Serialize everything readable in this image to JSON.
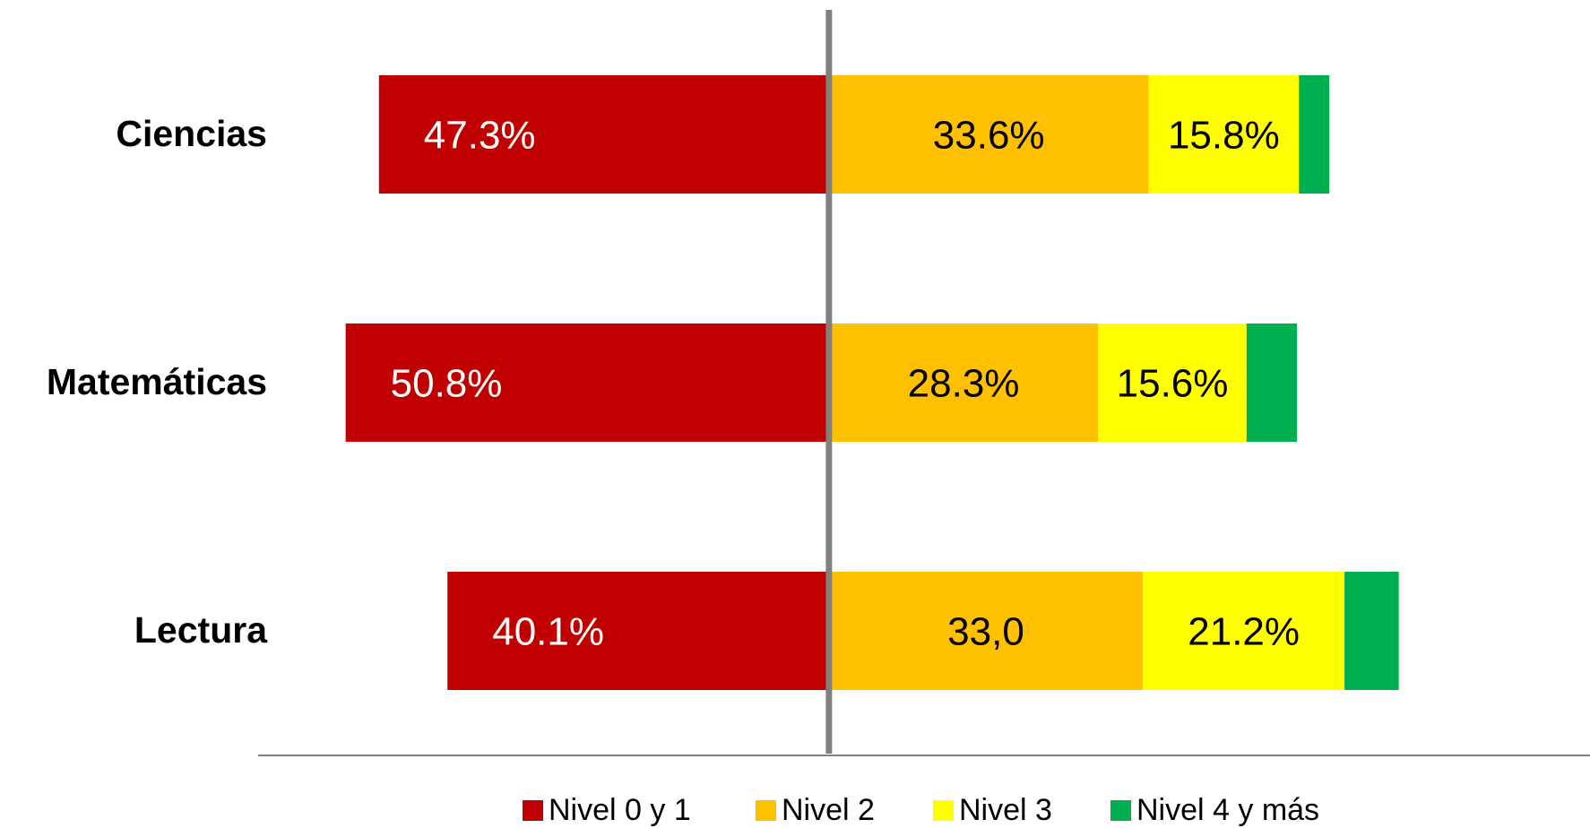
{
  "chart_data": {
    "type": "diverging-bar",
    "categories": [
      "Ciencias",
      "Matemáticas",
      "Lectura"
    ],
    "series": [
      {
        "name": "Nivel 0 y 1",
        "color": "#c00000",
        "values": [
          47.3,
          50.8,
          40.1
        ],
        "value_labels": [
          "47.3%",
          "50.8%",
          "40.1%"
        ]
      },
      {
        "name": "Nivel 2",
        "color": "#ffc000",
        "values": [
          33.6,
          28.3,
          33.0
        ],
        "value_labels": [
          "33.6%",
          "28.3%",
          "33,0"
        ]
      },
      {
        "name": "Nivel 3",
        "color": "#ffff00",
        "values": [
          15.8,
          15.6,
          21.2
        ],
        "value_labels": [
          "15.8%",
          "15.6%",
          "21.2%"
        ]
      },
      {
        "name": "Nivel 4 y más",
        "color": "#00b050",
        "values": [
          3.2,
          5.3,
          5.7
        ]
      }
    ],
    "xlim": [
      -60,
      80
    ],
    "legend": "bottom"
  }
}
